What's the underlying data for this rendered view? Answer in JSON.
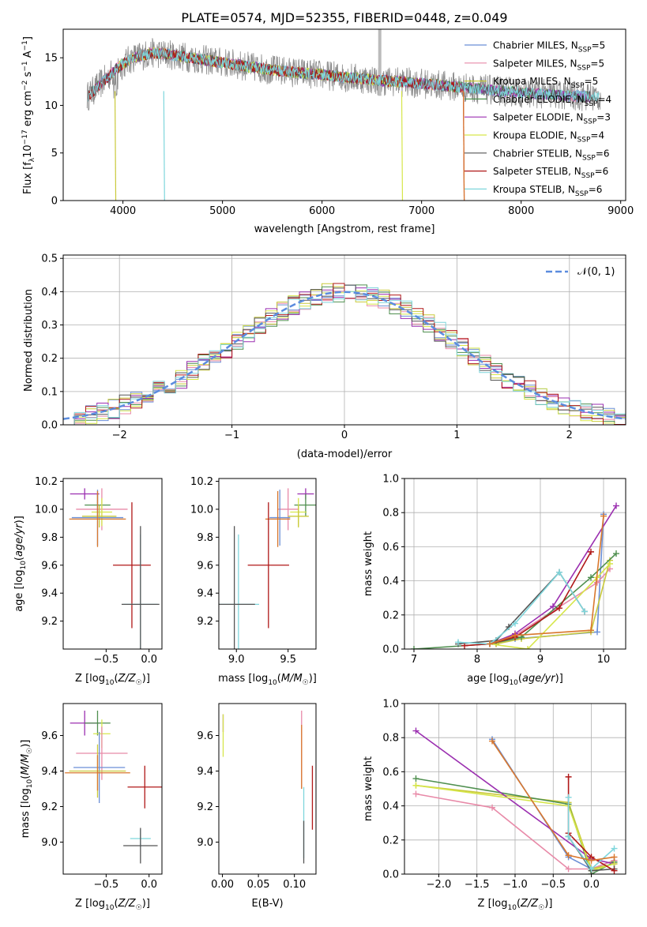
{
  "figure": {
    "title": "PLATE=0574, MJD=52355, FIBERID=0448, z=0.049",
    "colors": {
      "Chabrier MILES": "#6b8fd6",
      "Salpeter MILES": "#e88aa8",
      "Kroupa MILES": "#c9c93a",
      "Chabrier ELODIE": "#4f8f4f",
      "Salpeter ELODIE": "#9b2fb0",
      "Kroupa ELODIE": "#d6e64a",
      "Chabrier STELIB": "#555555",
      "Salpeter STELIB": "#b01818",
      "Kroupa STELIB": "#7fd6dc",
      "extra_orange": "#d9782e",
      "normal_curve": "#5b8cde",
      "data_gray": "#8c8c8c"
    }
  },
  "chart_data": [
    {
      "type": "line",
      "name": "spectrum",
      "xlabel": "wavelength [Angstrom, rest frame]",
      "ylabel": "Flux [f_λ10^-17 erg cm^-2 s^-1 A^-1]",
      "xlim": [
        3400,
        9050
      ],
      "ylim": [
        0,
        18
      ],
      "xticks": [
        4000,
        5000,
        6000,
        7000,
        8000,
        9000
      ],
      "yticks": [
        0,
        5,
        10,
        15
      ],
      "legend_position": "top-right",
      "legend": [
        {
          "name": "Chabrier MILES",
          "n_ssp": 5
        },
        {
          "name": "Salpeter MILES",
          "n_ssp": 5
        },
        {
          "name": "Kroupa MILES",
          "n_ssp": 5
        },
        {
          "name": "Chabrier ELODIE",
          "n_ssp": 4
        },
        {
          "name": "Salpeter ELODIE",
          "n_ssp": 3
        },
        {
          "name": "Kroupa ELODIE",
          "n_ssp": 4
        },
        {
          "name": "Chabrier STELIB",
          "n_ssp": 6
        },
        {
          "name": "Salpeter STELIB",
          "n_ssp": 6
        },
        {
          "name": "Kroupa STELIB",
          "n_ssp": 6
        }
      ],
      "continuum": {
        "x": [
          3650,
          3800,
          3950,
          4100,
          4300,
          4500,
          4800,
          5000,
          5300,
          5600,
          6000,
          6300,
          6600,
          7000,
          7400,
          7800,
          8200,
          8500,
          8800
        ],
        "y": [
          11.0,
          12.5,
          14.0,
          15.0,
          15.5,
          15.3,
          14.8,
          14.5,
          14.0,
          13.6,
          13.2,
          12.9,
          12.6,
          12.3,
          11.9,
          11.5,
          11.2,
          11.0,
          10.9
        ]
      }
    },
    {
      "type": "histogram",
      "name": "residuals",
      "xlabel": "(data-model)/error",
      "ylabel": "Normed distribution",
      "xlim": [
        -2.5,
        2.5
      ],
      "ylim": [
        0,
        0.51
      ],
      "xticks": [
        -2,
        -1,
        0,
        1,
        2
      ],
      "yticks": [
        0.0,
        0.1,
        0.2,
        0.3,
        0.4,
        0.5
      ],
      "bin_width": 0.1,
      "legend": "𝒩(0, 1)",
      "legend_position": "top-right"
    },
    {
      "type": "errorbar",
      "name": "age-vs-Z",
      "xlabel": "Z [log10(Z/Z☉)]",
      "ylabel": "age  [log10(age/yr)]",
      "xlim": [
        -1.0,
        0.15
      ],
      "ylim": [
        9.0,
        10.22
      ],
      "xticks": [
        -0.5,
        0.0
      ],
      "yticks": [
        9.2,
        9.4,
        9.6,
        9.8,
        10.0,
        10.2
      ],
      "points": [
        {
          "series": "Salpeter ELODIE",
          "x": -0.75,
          "xerr": 0.17,
          "y": 10.11,
          "yerr": 0.04
        },
        {
          "series": "Chabrier ELODIE",
          "x": -0.6,
          "xerr": 0.15,
          "y": 10.03,
          "yerr": 0.08
        },
        {
          "series": "Salpeter MILES",
          "x": -0.55,
          "xerr": 0.3,
          "y": 10.0,
          "yerr": 0.15
        },
        {
          "series": "Kroupa ELODIE",
          "x": -0.55,
          "xerr": 0.12,
          "y": 9.98,
          "yerr": 0.1
        },
        {
          "series": "Kroupa MILES",
          "x": -0.58,
          "xerr": 0.2,
          "y": 9.95,
          "yerr": 0.08
        },
        {
          "series": "Chabrier MILES",
          "x": -0.6,
          "xerr": 0.3,
          "y": 9.94,
          "yerr": 0.2
        },
        {
          "series": "extra_orange",
          "x": -0.6,
          "xerr": 0.33,
          "y": 9.93,
          "yerr": 0.2
        },
        {
          "series": "Salpeter STELIB",
          "x": -0.2,
          "xerr": 0.22,
          "y": 9.6,
          "yerr": 0.45
        },
        {
          "series": "Kroupa STELIB",
          "x": -0.1,
          "xerr": 0.2,
          "y": 9.32,
          "yerr": 0.5
        },
        {
          "series": "Chabrier STELIB",
          "x": -0.1,
          "xerr": 0.22,
          "y": 9.32,
          "yerr": 0.56
        }
      ]
    },
    {
      "type": "errorbar",
      "name": "age-vs-mass",
      "xlabel": "mass [log10(M/M☉)]",
      "ylabel": "",
      "xlim": [
        8.83,
        9.77
      ],
      "ylim": [
        9.0,
        10.22
      ],
      "xticks": [
        9.0,
        9.5
      ],
      "yticks": [
        9.2,
        9.4,
        9.6,
        9.8,
        10.0,
        10.2
      ],
      "points": [
        {
          "series": "Salpeter ELODIE",
          "x": 9.67,
          "xerr": 0.08,
          "y": 10.11,
          "yerr": 0.04
        },
        {
          "series": "Chabrier ELODIE",
          "x": 9.67,
          "xerr": 0.11,
          "y": 10.03,
          "yerr": 0.08
        },
        {
          "series": "Salpeter MILES",
          "x": 9.5,
          "xerr": 0.1,
          "y": 10.0,
          "yerr": 0.15
        },
        {
          "series": "Kroupa ELODIE",
          "x": 9.6,
          "xerr": 0.08,
          "y": 9.98,
          "yerr": 0.1
        },
        {
          "series": "Kroupa MILES",
          "x": 9.6,
          "xerr": 0.1,
          "y": 9.95,
          "yerr": 0.08
        },
        {
          "series": "Chabrier MILES",
          "x": 9.42,
          "xerr": 0.1,
          "y": 9.94,
          "yerr": 0.2
        },
        {
          "series": "extra_orange",
          "x": 9.4,
          "xerr": 0.12,
          "y": 9.93,
          "yerr": 0.2
        },
        {
          "series": "Salpeter STELIB",
          "x": 9.31,
          "xerr": 0.2,
          "y": 9.6,
          "yerr": 0.45
        },
        {
          "series": "Kroupa STELIB",
          "x": 9.02,
          "xerr": 0.2,
          "y": 9.32,
          "yerr": 0.5
        },
        {
          "series": "Chabrier STELIB",
          "x": 8.98,
          "xerr": 0.2,
          "y": 9.32,
          "yerr": 0.56
        }
      ]
    },
    {
      "type": "line",
      "name": "mass-weight-vs-age",
      "xlabel": "age  [log10(age/yr)]",
      "ylabel": "mass weight",
      "xlim": [
        6.85,
        10.35
      ],
      "ylim": [
        0,
        1.0
      ],
      "xticks": [
        7,
        8,
        9,
        10
      ],
      "yticks": [
        0.0,
        0.2,
        0.4,
        0.6,
        0.8,
        1.0
      ],
      "series": [
        {
          "name": "Chabrier MILES",
          "x": [
            8.3,
            8.6,
            9.9,
            10.0
          ],
          "y": [
            0.03,
            0.06,
            0.1,
            0.79
          ]
        },
        {
          "name": "Salpeter MILES",
          "x": [
            8.3,
            8.6,
            9.9,
            10.1
          ],
          "y": [
            0.03,
            0.08,
            0.39,
            0.47
          ]
        },
        {
          "name": "Kroupa MILES",
          "x": [
            8.3,
            8.7,
            9.8,
            10.1
          ],
          "y": [
            0.03,
            0.06,
            0.1,
            0.52
          ]
        },
        {
          "name": "Chabrier ELODIE",
          "x": [
            7.0,
            8.2,
            8.7,
            9.8,
            10.2
          ],
          "y": [
            0.0,
            0.03,
            0.07,
            0.42,
            0.56
          ]
        },
        {
          "name": "Salpeter ELODIE",
          "x": [
            8.2,
            8.6,
            9.2,
            10.2
          ],
          "y": [
            0.03,
            0.09,
            0.25,
            0.84
          ]
        },
        {
          "name": "Kroupa ELODIE",
          "x": [
            8.2,
            8.8,
            9.9,
            10.1
          ],
          "y": [
            0.03,
            0.0,
            0.42,
            0.5
          ]
        },
        {
          "name": "Chabrier STELIB",
          "x": [
            7.7,
            8.3,
            8.5,
            9.3,
            9.7
          ],
          "y": [
            0.03,
            0.05,
            0.13,
            0.45,
            0.22
          ]
        },
        {
          "name": "Salpeter STELIB",
          "x": [
            7.8,
            8.2,
            8.6,
            9.3,
            9.8
          ],
          "y": [
            0.02,
            0.03,
            0.07,
            0.24,
            0.57
          ]
        },
        {
          "name": "Kroupa STELIB",
          "x": [
            7.7,
            8.2,
            8.6,
            9.3,
            9.7
          ],
          "y": [
            0.04,
            0.03,
            0.15,
            0.45,
            0.22
          ]
        },
        {
          "name": "extra_orange",
          "x": [
            8.2,
            8.6,
            9.8,
            10.0
          ],
          "y": [
            0.03,
            0.08,
            0.11,
            0.78
          ]
        }
      ]
    },
    {
      "type": "errorbar",
      "name": "mass-vs-Z",
      "xlabel": "Z [log10(Z/Z☉)]",
      "ylabel": "mass [log10(M/M☉)]",
      "xlim": [
        -1.0,
        0.15
      ],
      "ylim": [
        8.82,
        9.78
      ],
      "xticks": [
        -0.5,
        0.0
      ],
      "yticks": [
        9.0,
        9.2,
        9.4,
        9.6
      ],
      "points": [
        {
          "series": "Salpeter ELODIE",
          "x": -0.75,
          "xerr": 0.17,
          "y": 9.67,
          "yerr": 0.07
        },
        {
          "series": "Chabrier ELODIE",
          "x": -0.6,
          "xerr": 0.15,
          "y": 9.67,
          "yerr": 0.07
        },
        {
          "series": "Kroupa ELODIE",
          "x": -0.55,
          "xerr": 0.1,
          "y": 9.61,
          "yerr": 0.08
        },
        {
          "series": "Salpeter MILES",
          "x": -0.55,
          "xerr": 0.3,
          "y": 9.5,
          "yerr": 0.15
        },
        {
          "series": "Chabrier MILES",
          "x": -0.58,
          "xerr": 0.3,
          "y": 9.42,
          "yerr": 0.2
        },
        {
          "series": "Kroupa MILES",
          "x": -0.6,
          "xerr": 0.33,
          "y": 9.4,
          "yerr": 0.15
        },
        {
          "series": "extra_orange",
          "x": -0.6,
          "xerr": 0.38,
          "y": 9.39,
          "yerr": 0.1
        },
        {
          "series": "Salpeter STELIB",
          "x": -0.05,
          "xerr": 0.2,
          "y": 9.31,
          "yerr": 0.12
        },
        {
          "series": "Kroupa STELIB",
          "x": -0.1,
          "xerr": 0.12,
          "y": 9.02,
          "yerr": 0.05
        },
        {
          "series": "Chabrier STELIB",
          "x": -0.1,
          "xerr": 0.2,
          "y": 8.98,
          "yerr": 0.1
        }
      ]
    },
    {
      "type": "errorbar",
      "name": "mass-vs-EBV",
      "xlabel": "E(B-V)",
      "ylabel": "",
      "xlim": [
        -0.005,
        0.13
      ],
      "ylim": [
        8.82,
        9.78
      ],
      "xticks": [
        0.0,
        0.05,
        0.1
      ],
      "yticks": [
        9.0,
        9.2,
        9.4,
        9.6
      ],
      "points": [
        {
          "series": "Salpeter ELODIE",
          "x": 0.001,
          "y": 9.67,
          "yerr": 0.05
        },
        {
          "series": "Kroupa ELODIE",
          "x": 0.001,
          "y": 9.6,
          "yerr": 0.12
        },
        {
          "series": "Salpeter MILES",
          "x": 0.11,
          "y": 9.52,
          "yerr": 0.22
        },
        {
          "series": "extra_orange",
          "x": 0.11,
          "y": 9.48,
          "yerr": 0.18
        },
        {
          "series": "Salpeter STELIB",
          "x": 0.125,
          "y": 9.25,
          "yerr": 0.18
        },
        {
          "series": "Kroupa STELIB",
          "x": 0.113,
          "y": 9.11,
          "yerr": 0.2
        },
        {
          "series": "Chabrier STELIB",
          "x": 0.113,
          "y": 9.0,
          "yerr": 0.12
        }
      ]
    },
    {
      "type": "line",
      "name": "mass-weight-vs-Z",
      "xlabel": "Z [log10(Z/Z☉)]",
      "ylabel": "mass weight",
      "xlim": [
        -2.45,
        0.45
      ],
      "ylim": [
        0,
        1.0
      ],
      "xticks": [
        -2.0,
        -1.5,
        -1.0,
        -0.5,
        0.0
      ],
      "yticks": [
        0.0,
        0.2,
        0.4,
        0.6,
        0.8,
        1.0
      ],
      "series": [
        {
          "name": "Chabrier MILES",
          "x": [
            -1.3,
            -0.3,
            0.0,
            0.3
          ],
          "y": [
            0.79,
            0.1,
            0.03,
            0.08
          ]
        },
        {
          "name": "Salpeter MILES",
          "x": [
            -2.3,
            -1.3,
            -0.3,
            0.0,
            0.3
          ],
          "y": [
            0.47,
            0.39,
            0.03,
            0.03,
            0.08
          ]
        },
        {
          "name": "Kroupa MILES",
          "x": [
            -2.3,
            -0.3,
            0.0,
            0.3
          ],
          "y": [
            0.52,
            0.42,
            0.03,
            0.06
          ]
        },
        {
          "name": "Chabrier ELODIE",
          "x": [
            -2.3,
            -0.3,
            0.0,
            0.3
          ],
          "y": [
            0.56,
            0.41,
            0.0,
            0.07
          ]
        },
        {
          "name": "Salpeter ELODIE",
          "x": [
            -2.3,
            0.0,
            0.3
          ],
          "y": [
            0.84,
            0.09,
            0.06
          ]
        },
        {
          "name": "Kroupa ELODIE",
          "x": [
            -2.3,
            -0.3,
            0.0,
            0.3
          ],
          "y": [
            0.52,
            0.4,
            0.02,
            0.06
          ]
        },
        {
          "name": "Chabrier STELIB",
          "x": [
            -0.3,
            0.0,
            0.3
          ],
          "y": [
            0.22,
            0.02,
            0.03
          ]
        },
        {
          "name": "Salpeter STELIB",
          "x": [
            -0.3,
            -0.3,
            0.0,
            0.3
          ],
          "y": [
            0.57,
            0.24,
            0.1,
            0.02
          ]
        },
        {
          "name": "Kroupa STELIB",
          "x": [
            -0.3,
            -0.3,
            0.0,
            0.3
          ],
          "y": [
            0.45,
            0.22,
            0.03,
            0.15
          ]
        },
        {
          "name": "extra_orange",
          "x": [
            -1.3,
            -0.3,
            0.0,
            0.3
          ],
          "y": [
            0.78,
            0.11,
            0.08,
            0.1
          ]
        }
      ]
    }
  ]
}
